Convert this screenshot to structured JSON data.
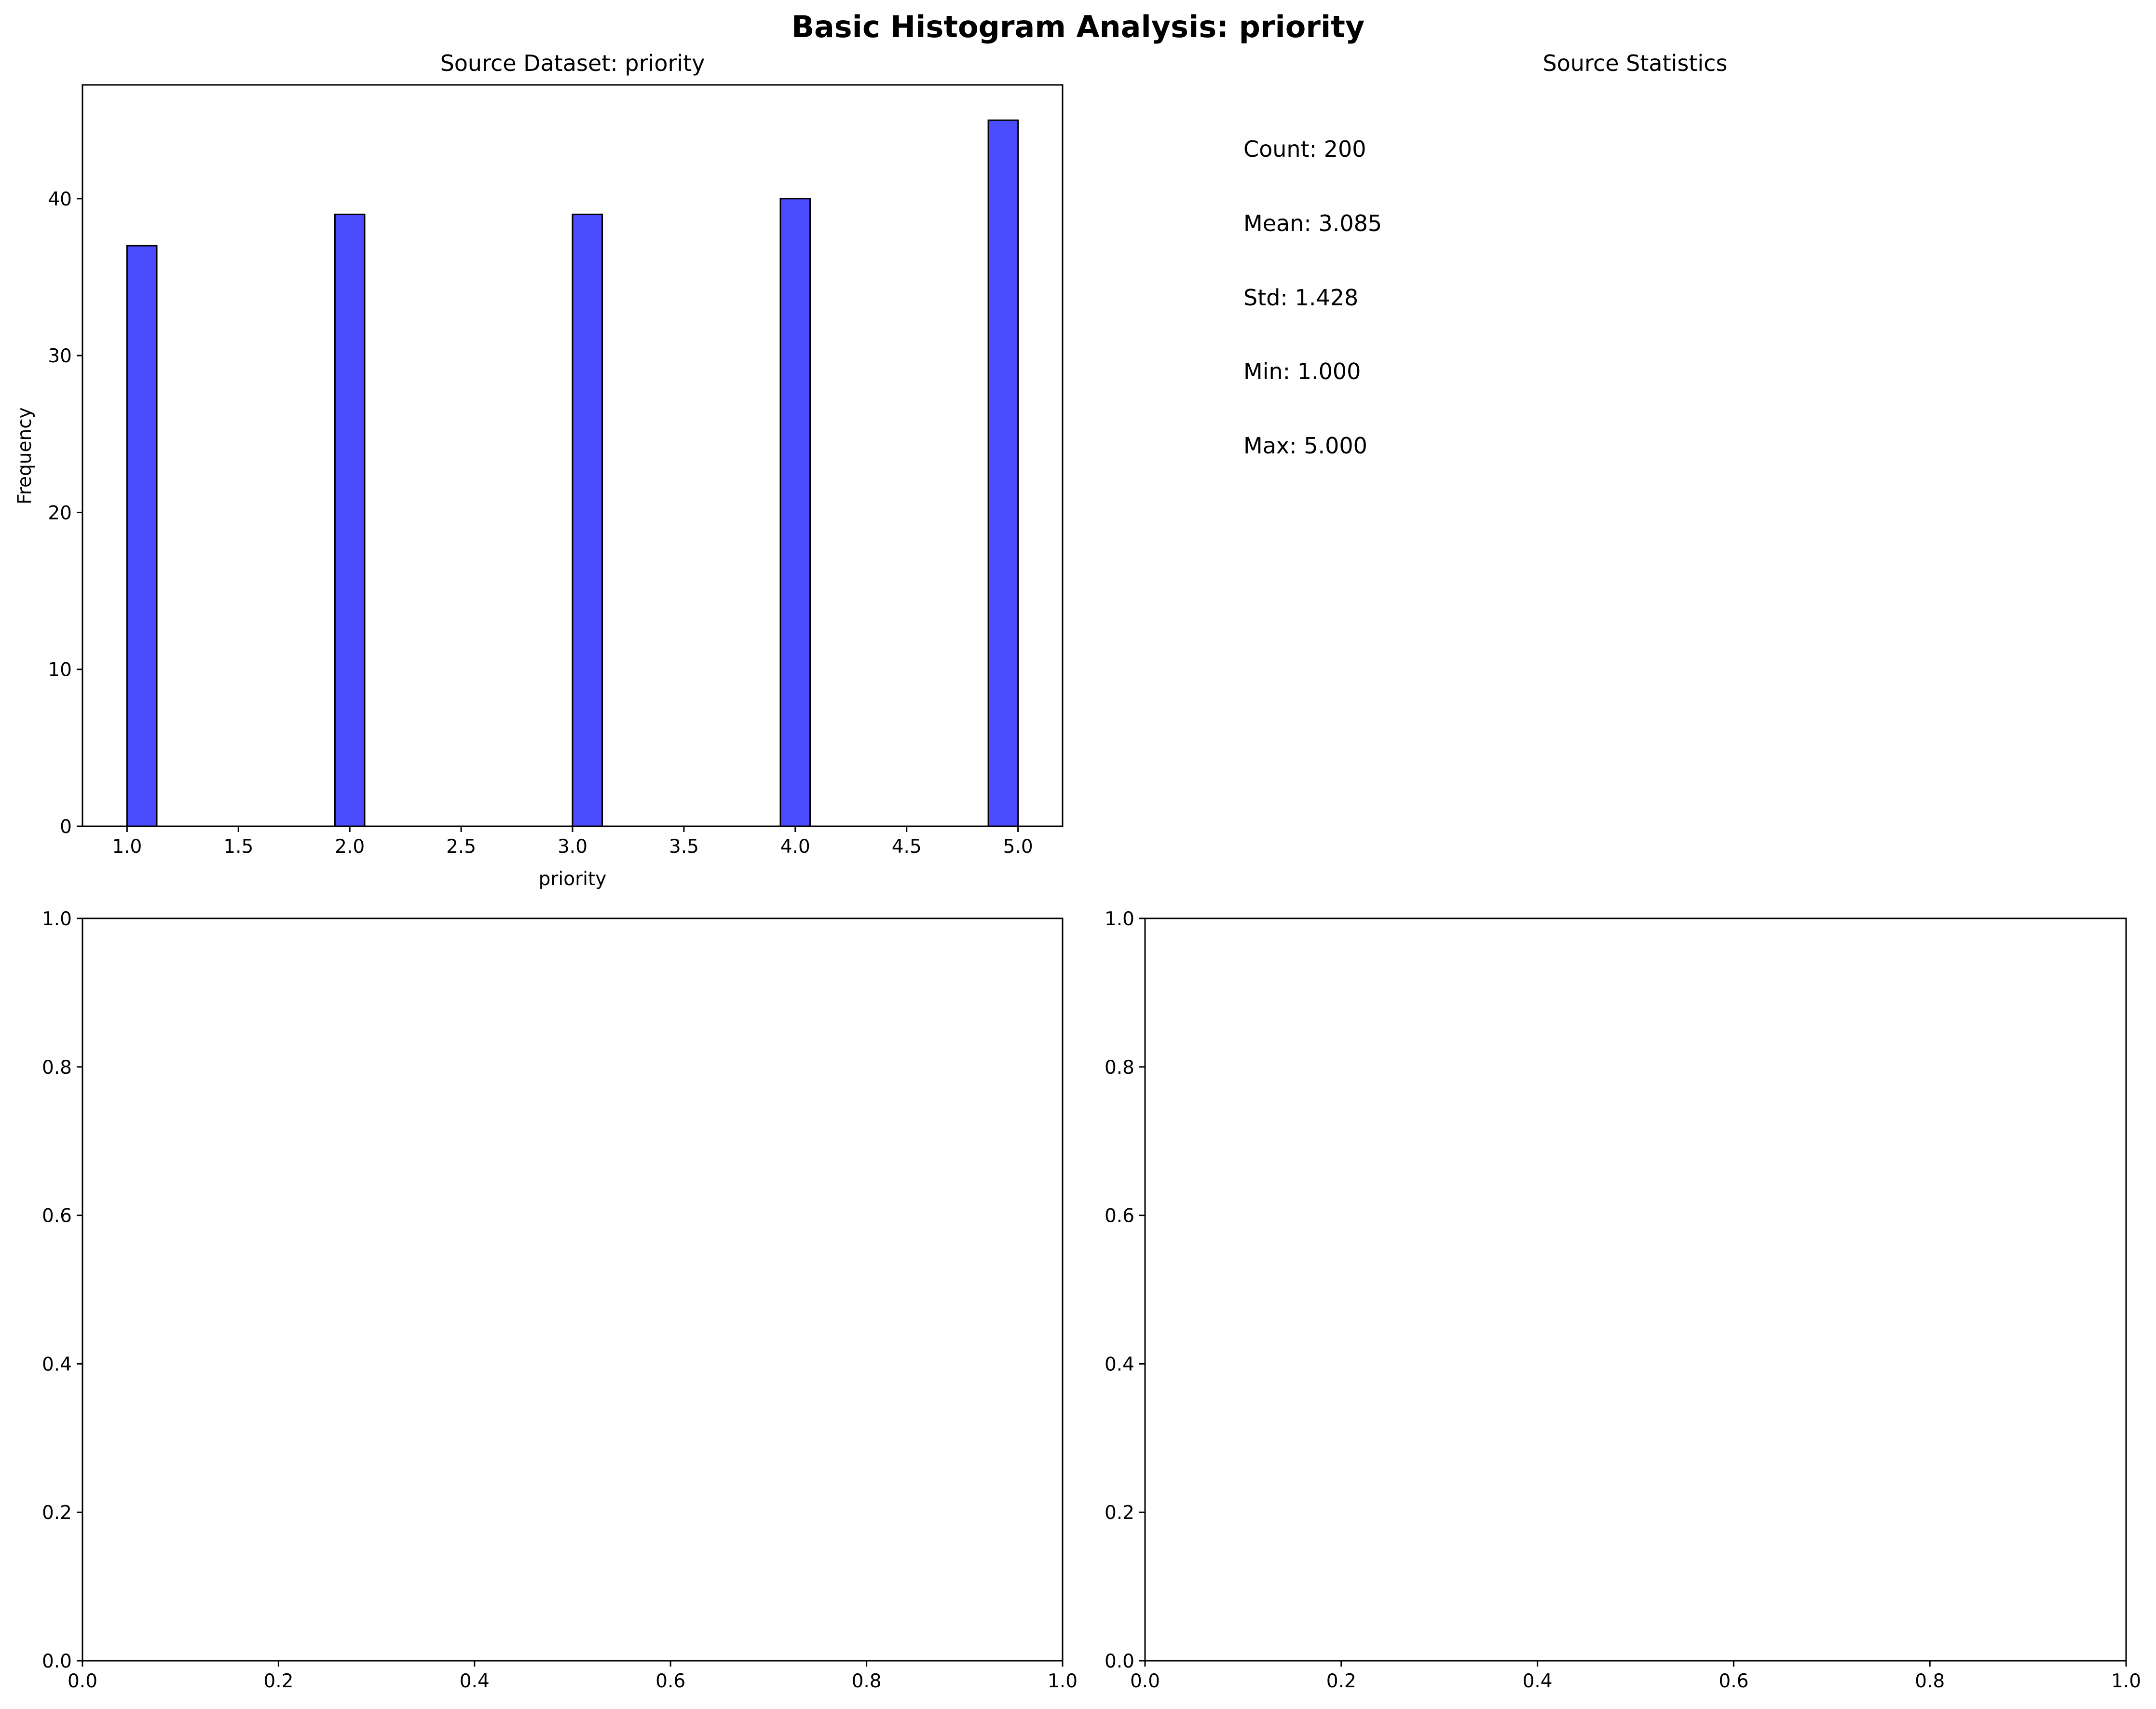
{
  "figure": {
    "suptitle": "Basic Histogram Analysis: priority"
  },
  "colors": {
    "bar_fill": "#0000ff",
    "bar_fill_opacity": 0.7,
    "bar_edge": "#000000",
    "axes_edge": "#000000",
    "background": "#ffffff"
  },
  "stats_panel": {
    "title": "Source Statistics",
    "lines": [
      "Count: 200",
      "Mean: 3.085",
      "Std: 1.428",
      "Min: 1.000",
      "Max: 5.000"
    ]
  },
  "chart_data": [
    {
      "type": "bar",
      "title": "Source Dataset: priority",
      "xlabel": "priority",
      "ylabel": "Frequency",
      "xlim": [
        0.8,
        5.2
      ],
      "ylim": [
        0,
        47.25
      ],
      "xticks": [
        1.0,
        1.5,
        2.0,
        2.5,
        3.0,
        3.5,
        4.0,
        4.5,
        5.0
      ],
      "xtick_labels": [
        "1.0",
        "1.5",
        "2.0",
        "2.5",
        "3.0",
        "3.5",
        "4.0",
        "4.5",
        "5.0"
      ],
      "yticks": [
        0,
        10,
        20,
        30,
        40
      ],
      "ytick_labels": [
        "0",
        "10",
        "20",
        "30",
        "40"
      ],
      "bin_width": 0.1333,
      "bars": [
        {
          "x_start": 1.0,
          "value": 37
        },
        {
          "x_start": 1.9333,
          "value": 39
        },
        {
          "x_start": 3.0,
          "value": 39
        },
        {
          "x_start": 3.9333,
          "value": 40
        },
        {
          "x_start": 4.8667,
          "value": 45
        }
      ],
      "grid": false
    },
    {
      "type": "empty",
      "xlim": [
        0,
        1
      ],
      "ylim": [
        0,
        1
      ],
      "xtick_labels": [
        "0.0",
        "0.2",
        "0.4",
        "0.6",
        "0.8",
        "1.0"
      ],
      "ytick_labels": [
        "0.0",
        "0.2",
        "0.4",
        "0.6",
        "0.8",
        "1.0"
      ]
    },
    {
      "type": "empty",
      "xlim": [
        0,
        1
      ],
      "ylim": [
        0,
        1
      ],
      "xtick_labels": [
        "0.0",
        "0.2",
        "0.4",
        "0.6",
        "0.8",
        "1.0"
      ],
      "ytick_labels": [
        "0.0",
        "0.2",
        "0.4",
        "0.6",
        "0.8",
        "1.0"
      ]
    }
  ]
}
